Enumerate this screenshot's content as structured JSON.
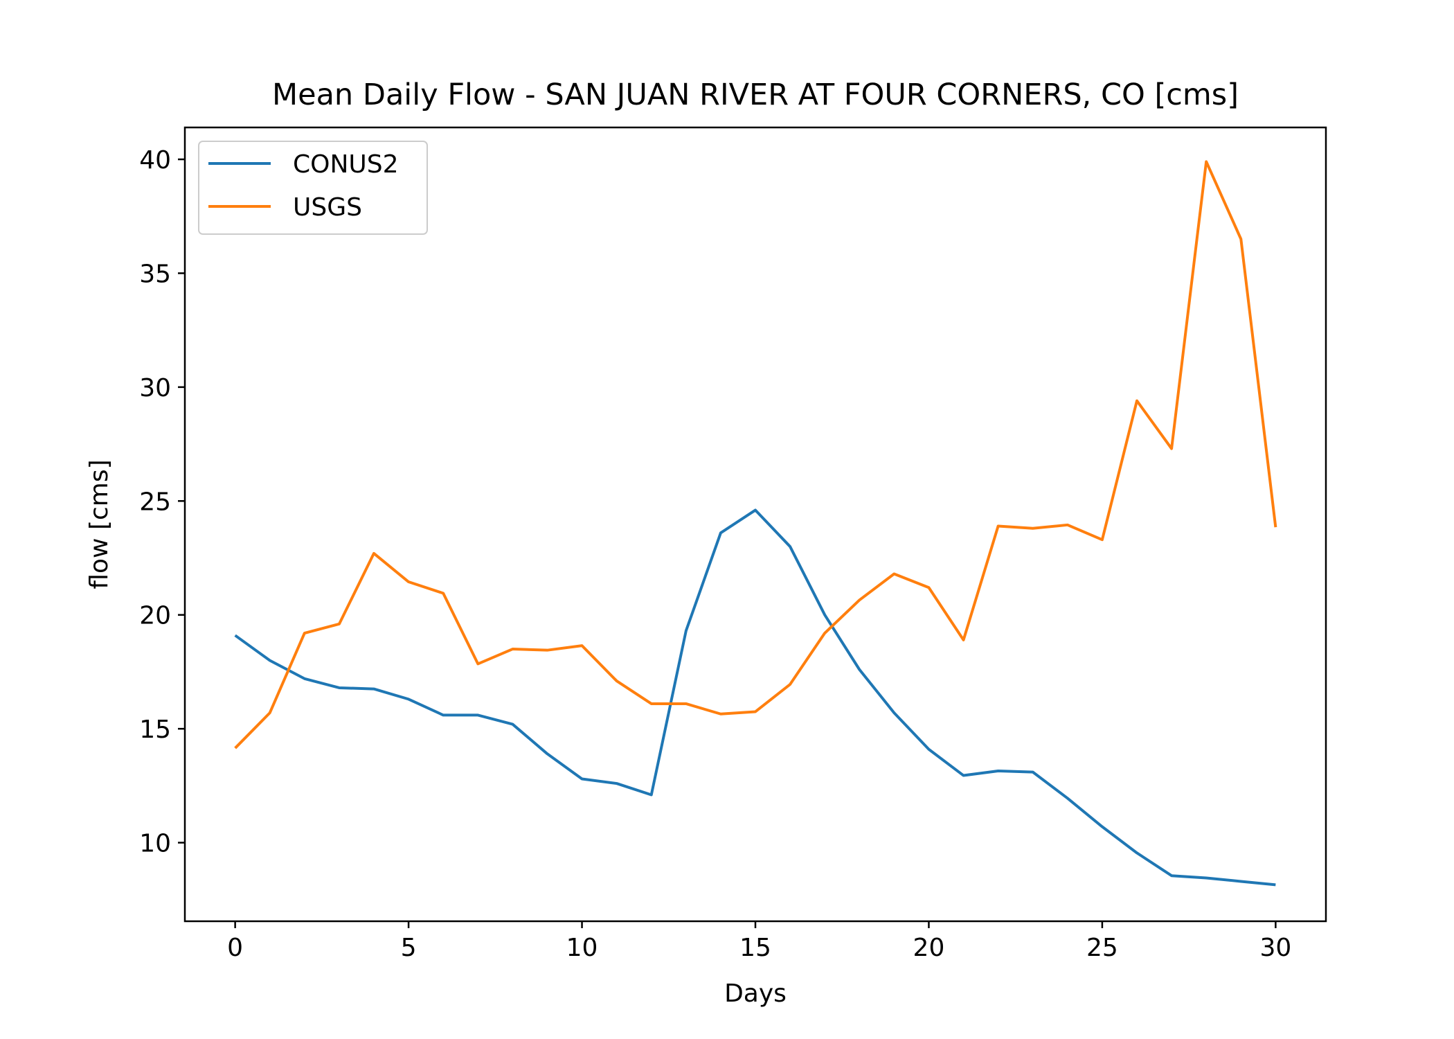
{
  "chart_data": {
    "type": "line",
    "title": "Mean Daily Flow - SAN JUAN RIVER AT FOUR CORNERS, CO [cms]",
    "xlabel": "Days",
    "ylabel": "flow [cms]",
    "xlim": [
      -1.45,
      31.45
    ],
    "ylim": [
      6.55,
      41.4
    ],
    "xticks": [
      0,
      5,
      10,
      15,
      20,
      25,
      30
    ],
    "yticks": [
      10,
      15,
      20,
      25,
      30,
      35,
      40
    ],
    "grid": false,
    "legend_position": "upper-left",
    "x": [
      0,
      1,
      2,
      3,
      4,
      5,
      6,
      7,
      8,
      9,
      10,
      11,
      12,
      13,
      14,
      15,
      16,
      17,
      18,
      19,
      20,
      21,
      22,
      23,
      24,
      25,
      26,
      27,
      28,
      29,
      30
    ],
    "series": [
      {
        "name": "CONUS2",
        "color": "#1f77b4",
        "values": [
          19.1,
          18.0,
          17.2,
          16.8,
          16.75,
          16.3,
          15.6,
          15.6,
          15.2,
          13.9,
          12.8,
          12.6,
          12.1,
          19.3,
          23.6,
          24.6,
          23.0,
          20.0,
          17.6,
          15.7,
          14.1,
          12.95,
          13.15,
          13.1,
          11.95,
          10.7,
          9.55,
          8.55,
          8.45,
          8.3,
          8.15
        ]
      },
      {
        "name": "USGS",
        "color": "#ff7f0e",
        "values": [
          14.15,
          15.7,
          19.2,
          19.6,
          22.7,
          21.45,
          20.95,
          17.85,
          18.5,
          18.45,
          18.65,
          17.1,
          16.1,
          16.1,
          15.65,
          15.75,
          16.95,
          19.2,
          20.65,
          21.8,
          21.2,
          18.9,
          23.9,
          23.8,
          23.95,
          23.3,
          29.4,
          27.3,
          39.9,
          36.5,
          23.85
        ]
      }
    ]
  }
}
